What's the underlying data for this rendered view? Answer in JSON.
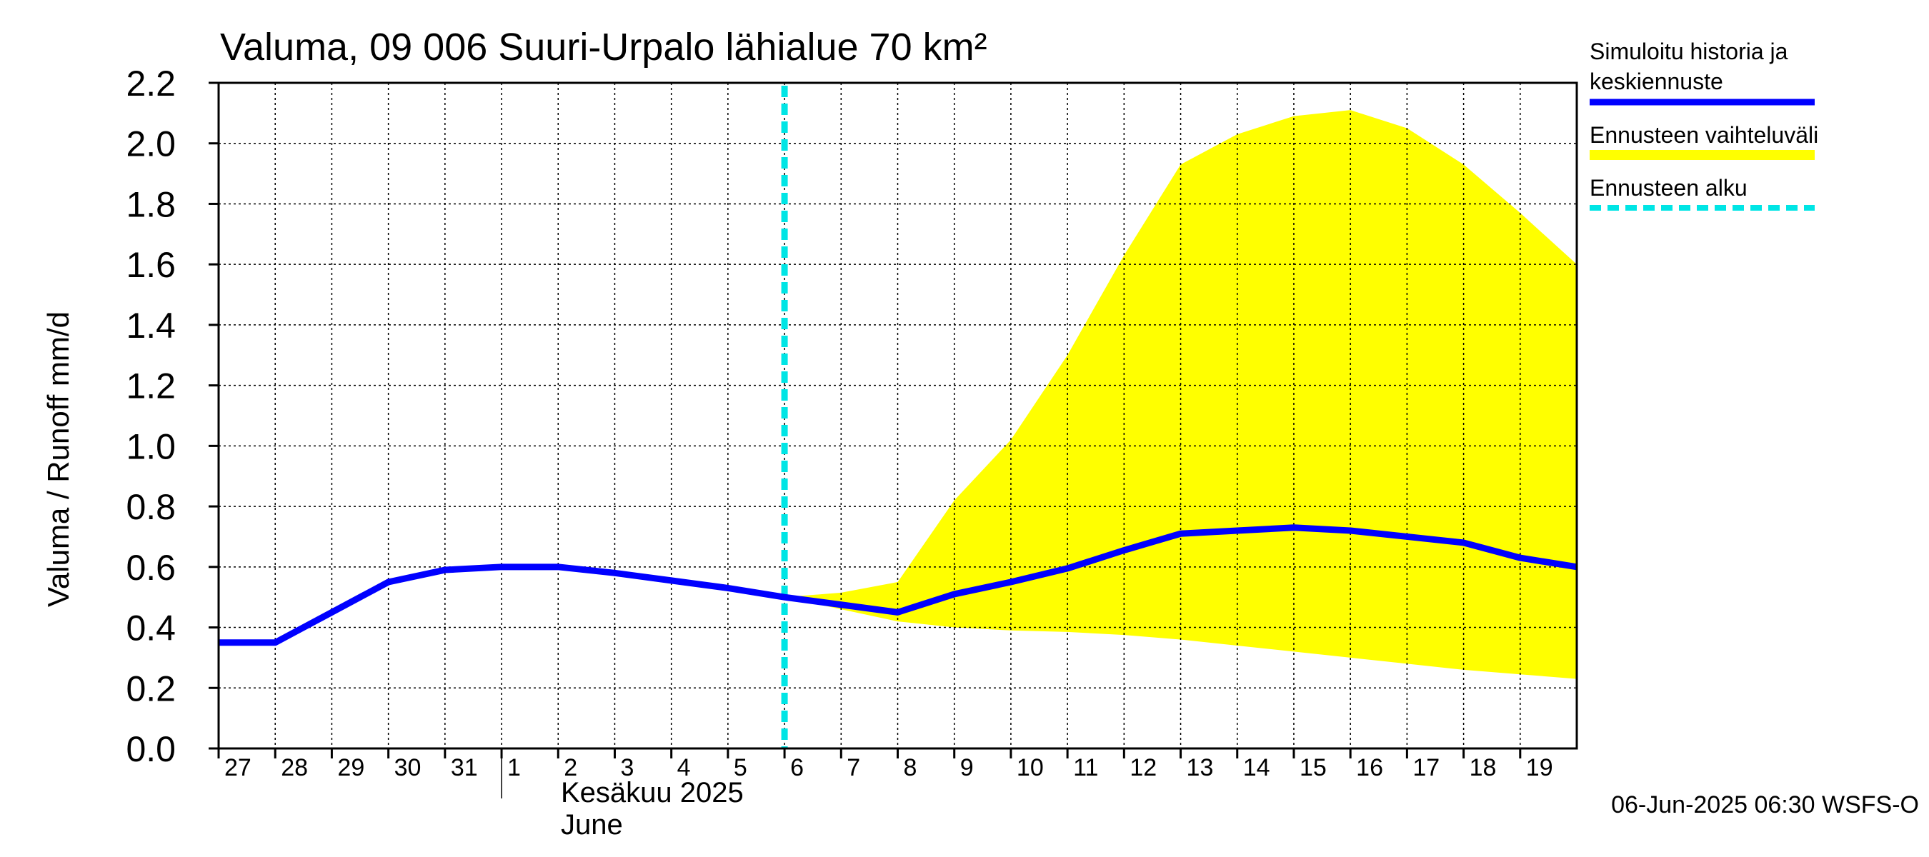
{
  "chart_data": {
    "type": "line",
    "title": "Valuma, 09 006 Suuri-Urpalo lähialue 70 km²",
    "ylabel": "Valuma / Runoff     mm/d",
    "ylim": [
      0,
      2.2
    ],
    "yticks": [
      "0.0",
      "0.2",
      "0.4",
      "0.6",
      "0.8",
      "1.0",
      "1.2",
      "1.4",
      "1.6",
      "1.8",
      "2.0",
      "2.2"
    ],
    "xlim": [
      0,
      24
    ],
    "x_tick_labels": [
      "27",
      "28",
      "29",
      "30",
      "31",
      "1",
      "2",
      "3",
      "4",
      "5",
      "6",
      "7",
      "8",
      "9",
      "10",
      "11",
      "12",
      "13",
      "14",
      "15",
      "16",
      "17",
      "18",
      "19"
    ],
    "month_label_fi": "Kesäkuu  2025",
    "month_label_en": "June",
    "forecast_start_x": 10.0,
    "series": [
      {
        "name": "Simuloitu historia ja keskiennuste",
        "color": "#0000ff",
        "points": [
          [
            0,
            0.35
          ],
          [
            1,
            0.35
          ],
          [
            2,
            0.45
          ],
          [
            3,
            0.55
          ],
          [
            4,
            0.59
          ],
          [
            5,
            0.6
          ],
          [
            6,
            0.6
          ],
          [
            7,
            0.58
          ],
          [
            8,
            0.555
          ],
          [
            9,
            0.53
          ],
          [
            10,
            0.5
          ],
          [
            11,
            0.475
          ],
          [
            12,
            0.45
          ],
          [
            13,
            0.51
          ],
          [
            14,
            0.55
          ],
          [
            15,
            0.595
          ],
          [
            16,
            0.655
          ],
          [
            17,
            0.71
          ],
          [
            18,
            0.72
          ],
          [
            19,
            0.73
          ],
          [
            20,
            0.72
          ],
          [
            21,
            0.7
          ],
          [
            22,
            0.68
          ],
          [
            23,
            0.63
          ],
          [
            24,
            0.6
          ]
        ]
      }
    ],
    "band": {
      "name": "Ennusteen vaihteluväli",
      "color": "#ffff00",
      "upper": [
        [
          10,
          0.5
        ],
        [
          11,
          0.515
        ],
        [
          12,
          0.55
        ],
        [
          13,
          0.82
        ],
        [
          14,
          1.02
        ],
        [
          15,
          1.3
        ],
        [
          16,
          1.63
        ],
        [
          17,
          1.93
        ],
        [
          18,
          2.03
        ],
        [
          19,
          2.09
        ],
        [
          20,
          2.11
        ],
        [
          21,
          2.05
        ],
        [
          22,
          1.93
        ],
        [
          23,
          1.77
        ],
        [
          24,
          1.6
        ]
      ],
      "lower": [
        [
          10,
          0.5
        ],
        [
          11,
          0.46
        ],
        [
          12,
          0.42
        ],
        [
          13,
          0.4
        ],
        [
          14,
          0.39
        ],
        [
          15,
          0.385
        ],
        [
          16,
          0.375
        ],
        [
          17,
          0.36
        ],
        [
          18,
          0.34
        ],
        [
          19,
          0.32
        ],
        [
          20,
          0.3
        ],
        [
          21,
          0.28
        ],
        [
          22,
          0.26
        ],
        [
          23,
          0.245
        ],
        [
          24,
          0.23
        ]
      ]
    },
    "legend": [
      {
        "label_line1": "Simuloitu historia ja",
        "label_line2": "keskiennuste",
        "color": "#0000ff",
        "style": "solid"
      },
      {
        "label_line1": "Ennusteen vaihteluväli",
        "label_line2": "",
        "color": "#ffff00",
        "style": "solid"
      },
      {
        "label_line1": "Ennusteen alku",
        "label_line2": "",
        "color": "#00e5e5",
        "style": "dashed"
      }
    ],
    "legend_position": "top-right outside",
    "grid": true
  },
  "footer": "06-Jun-2025 06:30 WSFS-O"
}
